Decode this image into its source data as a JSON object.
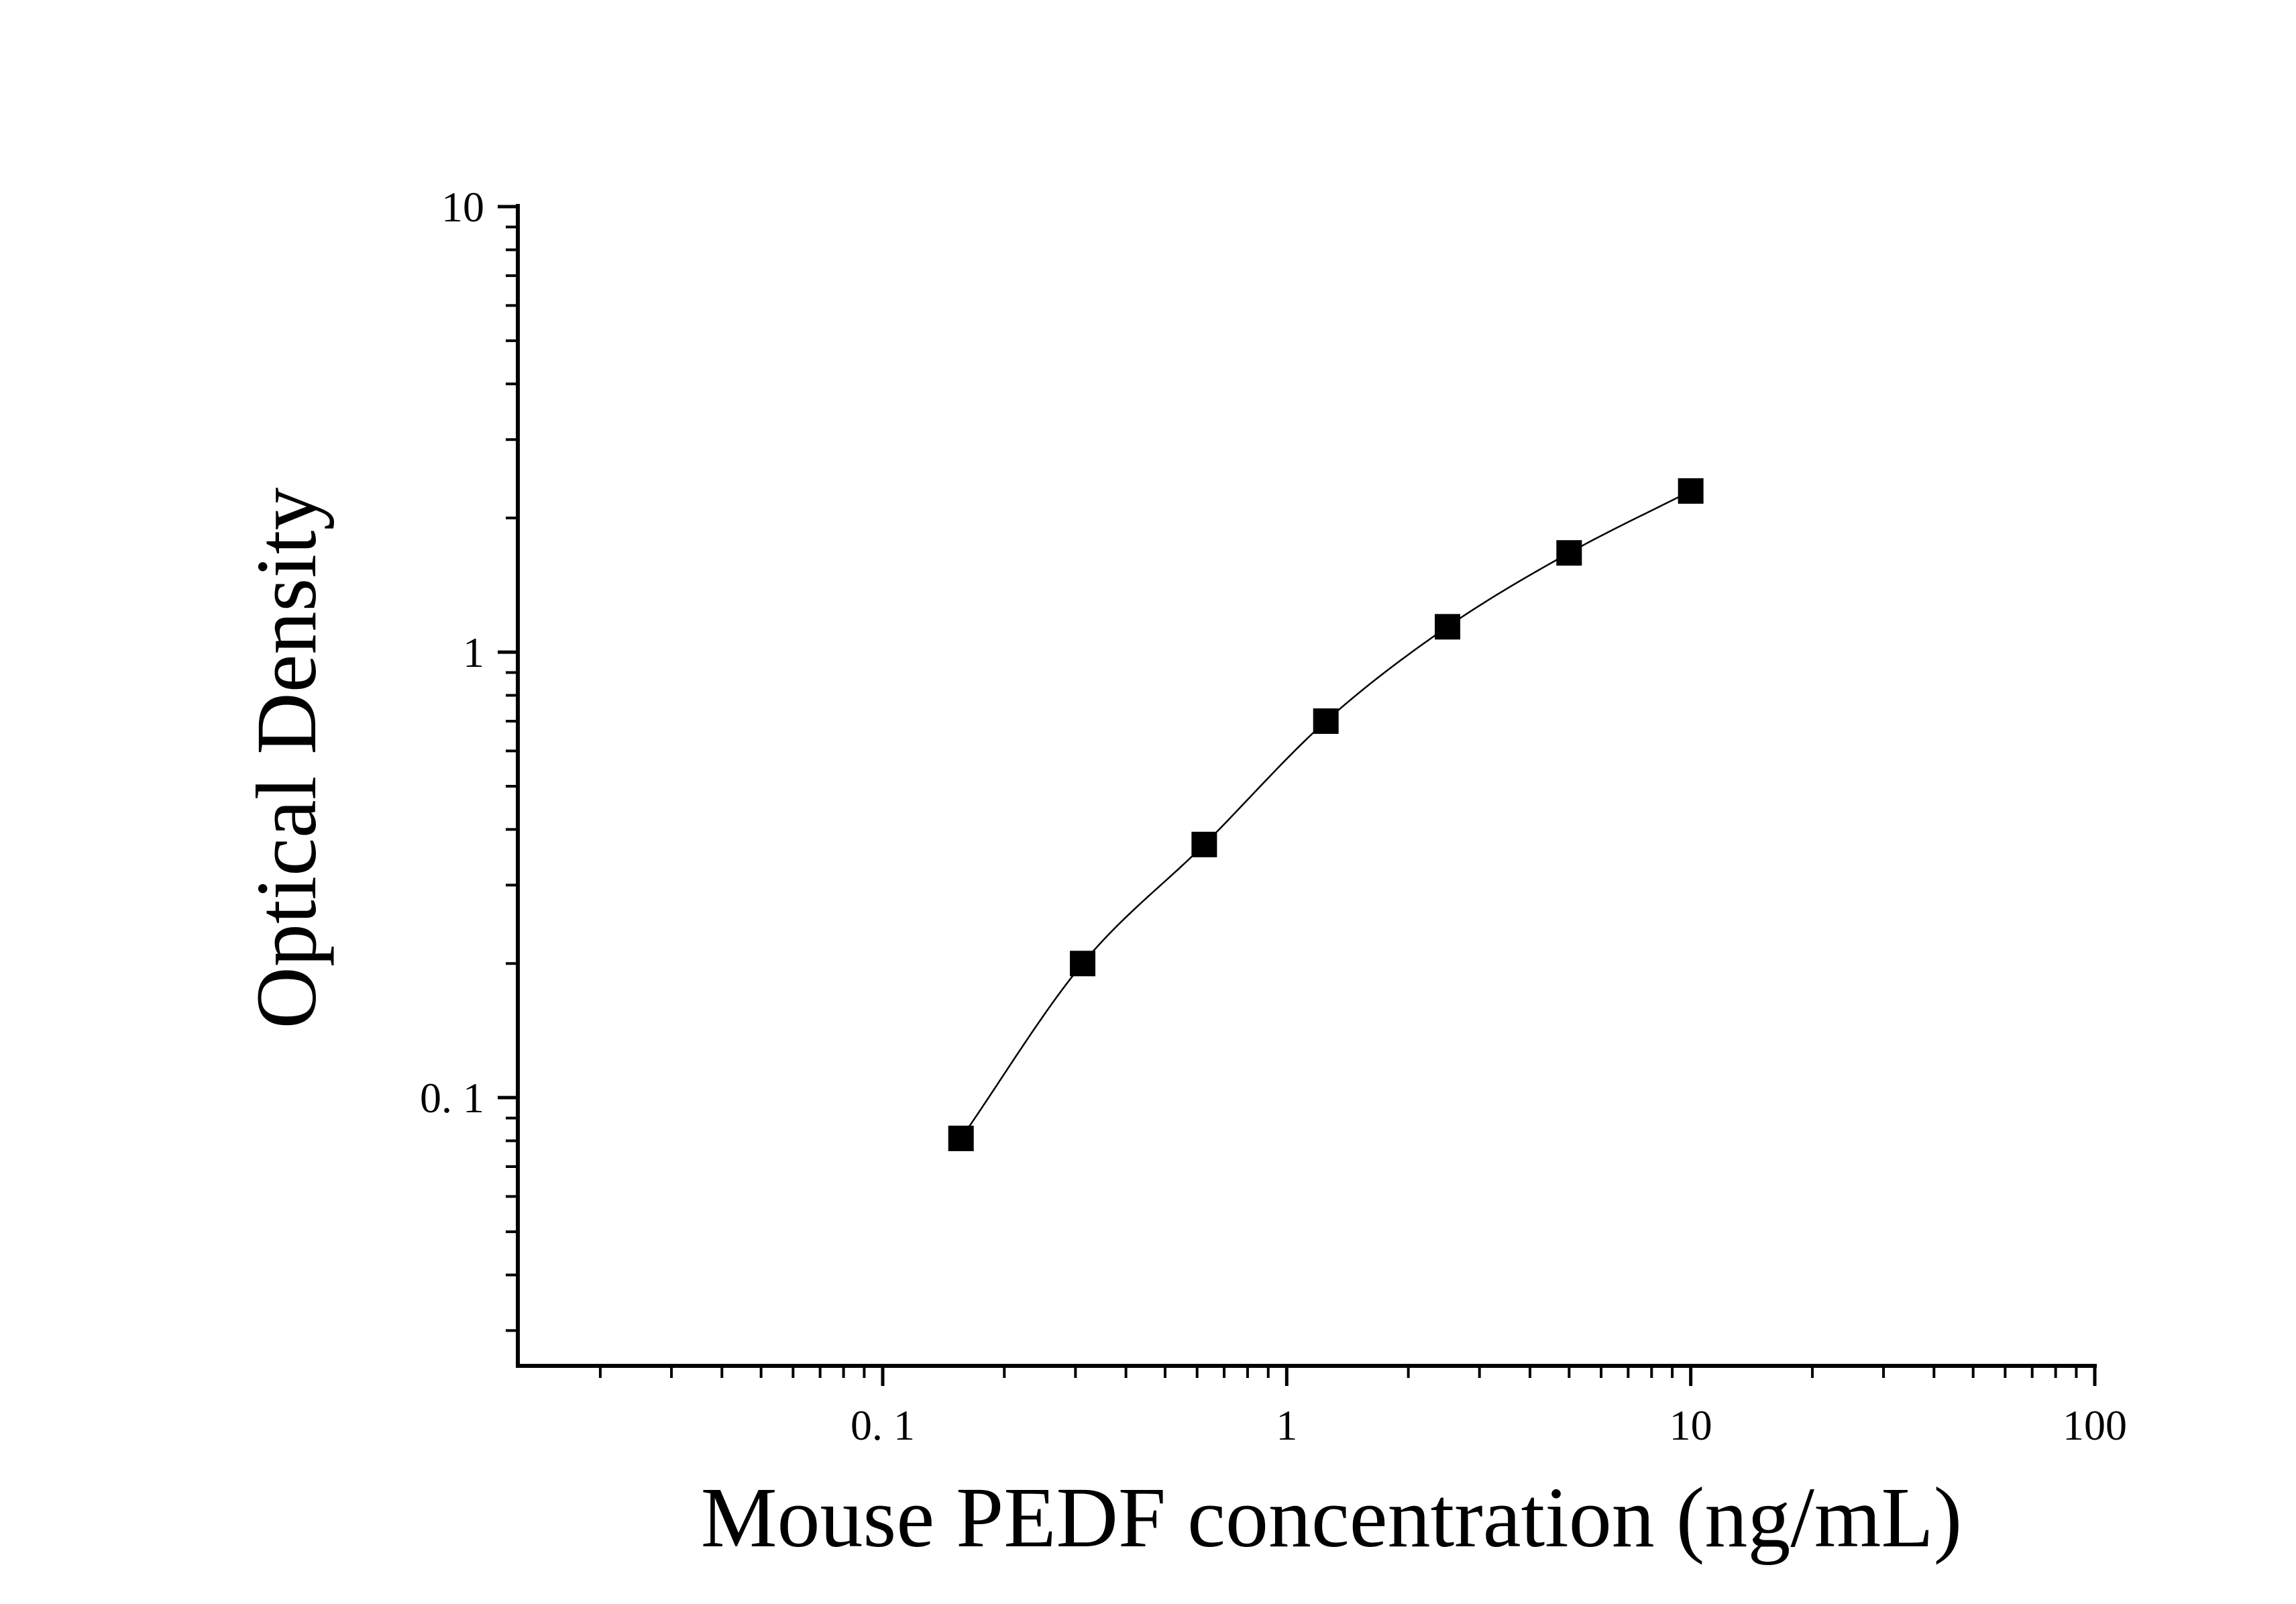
{
  "chart_data": {
    "type": "scatter",
    "xlabel": "Mouse PEDF concentration (ng/mL)",
    "ylabel": "Optical Density",
    "x_scale": "log",
    "y_scale": "log",
    "xlim": [
      0.0125,
      100
    ],
    "ylim": [
      0.025,
      10
    ],
    "x_ticks": [
      {
        "value": 0.1,
        "label": "0. 1"
      },
      {
        "value": 1,
        "label": "1"
      },
      {
        "value": 10,
        "label": "10"
      },
      {
        "value": 100,
        "label": "100"
      }
    ],
    "y_ticks": [
      {
        "value": 0.1,
        "label": "0. 1"
      },
      {
        "value": 1,
        "label": "1"
      },
      {
        "value": 10,
        "label": "10"
      }
    ],
    "grid": false,
    "series": [
      {
        "marker": "square",
        "color": "#000000",
        "fit_line": true,
        "points": [
          {
            "x": 0.15625,
            "y": 0.081
          },
          {
            "x": 0.3125,
            "y": 0.2
          },
          {
            "x": 0.625,
            "y": 0.37
          },
          {
            "x": 1.25,
            "y": 0.7
          },
          {
            "x": 2.5,
            "y": 1.14
          },
          {
            "x": 5,
            "y": 1.67
          },
          {
            "x": 10,
            "y": 2.3
          }
        ]
      }
    ]
  }
}
